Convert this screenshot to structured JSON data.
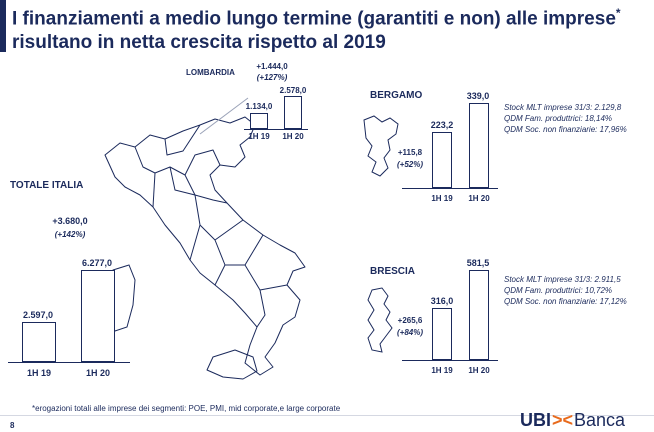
{
  "title": {
    "line1": "I finanziamenti a medio lungo termine (garantiti e non) alle imprese",
    "star": "*",
    "line2": "risultano in netta crescita rispetto al 2019"
  },
  "lombardia": {
    "label": "LOMBARDIA",
    "delta": "+1.444,0",
    "delta_pct": "(+127%)",
    "val_1h19": "1.134,0",
    "val_1h20": "2.578,0",
    "x1": "1H 19",
    "x2": "1H 20"
  },
  "totale": {
    "label": "TOTALE ITALIA",
    "delta": "+3.680,0",
    "delta_pct": "(+142%)",
    "val_1h19": "2.597,0",
    "val_1h20": "6.277,0",
    "x1": "1H 19",
    "x2": "1H 20"
  },
  "bergamo": {
    "label": "BERGAMO",
    "delta": "+115,8",
    "delta_pct": "(+52%)",
    "val_1h19": "223,2",
    "val_1h20": "339,0",
    "x1": "1H 19",
    "x2": "1H 20",
    "stock1": "Stock MLT imprese 31/3: 2.129,8",
    "stock2": "QDM Fam. produttrici: 18,14%",
    "stock3": "QDM Soc. non finanziarie: 17,96%"
  },
  "brescia": {
    "label": "BRESCIA",
    "delta": "+265,6",
    "delta_pct": "(+84%)",
    "val_1h19": "316,0",
    "val_1h20": "581,5",
    "x1": "1H 19",
    "x2": "1H 20",
    "stock1": "Stock MLT imprese 31/3: 2.911,5",
    "stock2": "QDM Fam. produttrici: 10,72%",
    "stock3": "QDM Soc. non finanziarie: 17,12%"
  },
  "footnote": "*erogazioni totali alle imprese dei segmenti: POE, PMI, mid corporate,e large corporate",
  "page_number": "8",
  "brand": {
    "ubi": "UBI",
    "x": "><",
    "banca": "Banca"
  },
  "colors": {
    "navy": "#1b2a5c",
    "orange": "#e86a1c"
  }
}
